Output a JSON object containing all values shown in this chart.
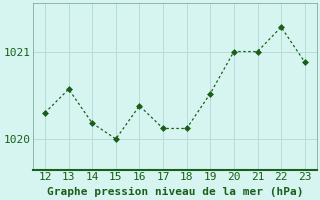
{
  "x": [
    12,
    13,
    14,
    15,
    16,
    17,
    18,
    19,
    20,
    21,
    22,
    23
  ],
  "y": [
    1020.3,
    1020.57,
    1020.18,
    1020.0,
    1020.38,
    1020.12,
    1020.12,
    1020.52,
    1021.0,
    1021.0,
    1021.28,
    1020.88
  ],
  "line_color": "#1a5e1a",
  "marker_color": "#1a5e1a",
  "bg_color": "#d6f5f0",
  "grid_color": "#b8ddd8",
  "spine_color": "#6e9e90",
  "bottom_spine_color": "#1a5e1a",
  "xlabel": "Graphe pression niveau de la mer (hPa)",
  "xlabel_color": "#1a5e1a",
  "tick_color": "#1a5e1a",
  "ylim": [
    1019.65,
    1021.55
  ],
  "yticks": [
    1020,
    1021
  ],
  "xticks": [
    12,
    13,
    14,
    15,
    16,
    17,
    18,
    19,
    20,
    21,
    22,
    23
  ],
  "xlabel_fontsize": 8,
  "tick_fontsize": 8
}
